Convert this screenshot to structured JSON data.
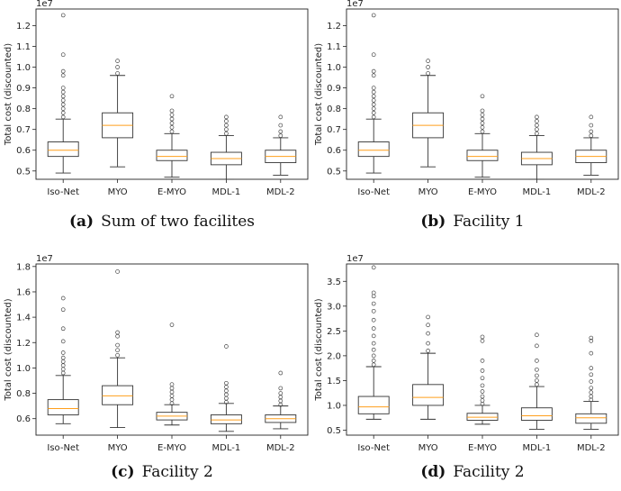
{
  "chart_data": [
    {
      "type": "box",
      "panel_label": "(a)",
      "caption": "Sum of two facilites",
      "ylabel": "Total cost (discounted)",
      "multiplier": "1e7",
      "categories": [
        "Iso-Net",
        "MYO",
        "E-MYO",
        "MDL-1",
        "MDL-2"
      ],
      "ylim": [
        0.46,
        1.28
      ],
      "yticks": [
        0.5,
        0.6,
        0.7,
        0.8,
        0.9,
        1.0,
        1.1,
        1.2
      ],
      "ytick_labels": [
        "0.5",
        "0.6",
        "0.7",
        "0.8",
        "0.9",
        "1.0",
        "1.1",
        "1.2"
      ],
      "boxes": [
        {
          "whislo": 0.49,
          "q1": 0.57,
          "med": 0.6,
          "q3": 0.64,
          "whishi": 0.75,
          "fliers": [
            0.76,
            0.78,
            0.8,
            0.82,
            0.84,
            0.86,
            0.88,
            0.9,
            0.96,
            0.98,
            1.06,
            1.25
          ]
        },
        {
          "whislo": 0.52,
          "q1": 0.66,
          "med": 0.72,
          "q3": 0.78,
          "whishi": 0.96,
          "fliers": [
            0.97,
            1.0,
            1.03
          ]
        },
        {
          "whislo": 0.47,
          "q1": 0.55,
          "med": 0.57,
          "q3": 0.6,
          "whishi": 0.68,
          "fliers": [
            0.69,
            0.71,
            0.73,
            0.75,
            0.77,
            0.79,
            0.86
          ]
        },
        {
          "whislo": 0.46,
          "q1": 0.53,
          "med": 0.56,
          "q3": 0.59,
          "whishi": 0.67,
          "fliers": [
            0.68,
            0.7,
            0.72,
            0.74,
            0.76
          ]
        },
        {
          "whislo": 0.48,
          "q1": 0.54,
          "med": 0.57,
          "q3": 0.6,
          "whishi": 0.66,
          "fliers": [
            0.67,
            0.69,
            0.72,
            0.76
          ]
        }
      ]
    },
    {
      "type": "box",
      "panel_label": "(b)",
      "caption": "Facility 1",
      "ylabel": "Total cost (discounted)",
      "multiplier": "1e7",
      "categories": [
        "Iso-Net",
        "MYO",
        "E-MYO",
        "MDL-1",
        "MDL-2"
      ],
      "ylim": [
        0.46,
        1.28
      ],
      "yticks": [
        0.5,
        0.6,
        0.7,
        0.8,
        0.9,
        1.0,
        1.1,
        1.2
      ],
      "ytick_labels": [
        "0.5",
        "0.6",
        "0.7",
        "0.8",
        "0.9",
        "1.0",
        "1.1",
        "1.2"
      ],
      "boxes": [
        {
          "whislo": 0.49,
          "q1": 0.57,
          "med": 0.6,
          "q3": 0.64,
          "whishi": 0.75,
          "fliers": [
            0.76,
            0.78,
            0.8,
            0.82,
            0.84,
            0.86,
            0.88,
            0.9,
            0.96,
            0.98,
            1.06,
            1.25
          ]
        },
        {
          "whislo": 0.52,
          "q1": 0.66,
          "med": 0.72,
          "q3": 0.78,
          "whishi": 0.96,
          "fliers": [
            0.97,
            1.0,
            1.03
          ]
        },
        {
          "whislo": 0.47,
          "q1": 0.55,
          "med": 0.57,
          "q3": 0.6,
          "whishi": 0.68,
          "fliers": [
            0.69,
            0.71,
            0.73,
            0.75,
            0.77,
            0.79,
            0.86
          ]
        },
        {
          "whislo": 0.46,
          "q1": 0.53,
          "med": 0.56,
          "q3": 0.59,
          "whishi": 0.67,
          "fliers": [
            0.68,
            0.7,
            0.72,
            0.74,
            0.76
          ]
        },
        {
          "whislo": 0.48,
          "q1": 0.54,
          "med": 0.57,
          "q3": 0.6,
          "whishi": 0.66,
          "fliers": [
            0.67,
            0.69,
            0.72,
            0.76
          ]
        }
      ]
    },
    {
      "type": "box",
      "panel_label": "(c)",
      "caption": "Facility 2",
      "ylabel": "Total cost (discounted)",
      "multiplier": "1e7",
      "categories": [
        "Iso-Net",
        "MYO",
        "E-MYO",
        "MDL-1",
        "MDL-2"
      ],
      "ylim": [
        0.47,
        1.82
      ],
      "yticks": [
        0.6,
        0.8,
        1.0,
        1.2,
        1.4,
        1.6,
        1.8
      ],
      "ytick_labels": [
        "0.6",
        "0.8",
        "1.0",
        "1.2",
        "1.4",
        "1.6",
        "1.8"
      ],
      "boxes": [
        {
          "whislo": 0.56,
          "q1": 0.63,
          "med": 0.68,
          "q3": 0.75,
          "whishi": 0.94,
          "fliers": [
            0.96,
            0.99,
            1.02,
            1.05,
            1.08,
            1.12,
            1.21,
            1.31,
            1.46,
            1.55
          ]
        },
        {
          "whislo": 0.53,
          "q1": 0.71,
          "med": 0.78,
          "q3": 0.86,
          "whishi": 1.08,
          "fliers": [
            1.1,
            1.14,
            1.18,
            1.25,
            1.28,
            1.76
          ]
        },
        {
          "whislo": 0.55,
          "q1": 0.59,
          "med": 0.62,
          "q3": 0.65,
          "whishi": 0.71,
          "fliers": [
            0.72,
            0.75,
            0.78,
            0.81,
            0.84,
            0.87,
            1.34
          ]
        },
        {
          "whislo": 0.5,
          "q1": 0.56,
          "med": 0.59,
          "q3": 0.63,
          "whishi": 0.72,
          "fliers": [
            0.73,
            0.76,
            0.79,
            0.82,
            0.85,
            0.88,
            1.17
          ]
        },
        {
          "whislo": 0.52,
          "q1": 0.57,
          "med": 0.6,
          "q3": 0.63,
          "whishi": 0.7,
          "fliers": [
            0.71,
            0.74,
            0.77,
            0.8,
            0.84,
            0.96
          ]
        }
      ]
    },
    {
      "type": "box",
      "panel_label": "(d)",
      "caption": "Facility 2",
      "ylabel": "Total cost (discounted)",
      "multiplier": "1e7",
      "categories": [
        "Iso-Net",
        "MYO",
        "E-MYO",
        "MDL-1",
        "MDL-2"
      ],
      "ylim": [
        0.4,
        3.85
      ],
      "yticks": [
        0.5,
        1.0,
        1.5,
        2.0,
        2.5,
        3.0,
        3.5
      ],
      "ytick_labels": [
        "0.5",
        "1.0",
        "1.5",
        "2.0",
        "2.5",
        "3.0",
        "3.5"
      ],
      "boxes": [
        {
          "whislo": 0.72,
          "q1": 0.83,
          "med": 0.97,
          "q3": 1.18,
          "whishi": 1.78,
          "fliers": [
            1.82,
            1.9,
            2.0,
            2.12,
            2.25,
            2.4,
            2.55,
            2.72,
            2.9,
            3.05,
            3.2,
            3.27,
            3.78
          ]
        },
        {
          "whislo": 0.72,
          "q1": 1.0,
          "med": 1.16,
          "q3": 1.42,
          "whishi": 2.05,
          "fliers": [
            2.1,
            2.25,
            2.45,
            2.62,
            2.78
          ]
        },
        {
          "whislo": 0.62,
          "q1": 0.7,
          "med": 0.76,
          "q3": 0.84,
          "whishi": 1.0,
          "fliers": [
            1.03,
            1.1,
            1.18,
            1.28,
            1.4,
            1.55,
            1.7,
            1.9,
            2.3,
            2.38
          ]
        },
        {
          "whislo": 0.52,
          "q1": 0.7,
          "med": 0.79,
          "q3": 0.95,
          "whishi": 1.38,
          "fliers": [
            1.42,
            1.5,
            1.6,
            1.72,
            1.9,
            2.2,
            2.42
          ]
        },
        {
          "whislo": 0.52,
          "q1": 0.64,
          "med": 0.75,
          "q3": 0.83,
          "whishi": 1.08,
          "fliers": [
            1.11,
            1.18,
            1.26,
            1.35,
            1.48,
            1.62,
            1.75,
            2.05,
            2.3,
            2.36
          ]
        }
      ]
    }
  ],
  "colors": {
    "median": "#ff9f1c",
    "box": "#333333",
    "axis": "#222222"
  }
}
